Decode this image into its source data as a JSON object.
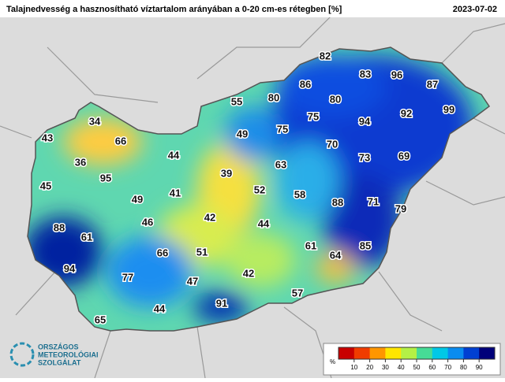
{
  "header": {
    "title": "Talajnedvesség a hasznosítható víztartalom arányában a 0-20 cm-es rétegben [%]",
    "date": "2023-07-02"
  },
  "map": {
    "values": [
      82,
      83,
      96,
      87,
      86,
      80,
      80,
      55,
      92,
      99,
      94,
      75,
      34,
      75,
      43,
      66,
      49,
      70,
      44,
      36,
      73,
      69,
      63,
      39,
      95,
      45,
      41,
      52,
      58,
      49,
      88,
      71,
      79,
      42,
      46,
      44,
      88,
      61,
      61,
      85,
      64,
      66,
      51,
      94,
      42,
      77,
      47,
      57,
      91,
      44,
      65
    ]
  },
  "legend": {
    "unit": "%",
    "range": [
      0,
      100
    ],
    "ticks": [
      10,
      20,
      30,
      40,
      50,
      60,
      70,
      80,
      90
    ],
    "colors": [
      "#c80000",
      "#f03c00",
      "#ff9600",
      "#ffe600",
      "#b4f046",
      "#46dc96",
      "#00c8e6",
      "#0a8cf0",
      "#0040d2",
      "#00007a"
    ]
  },
  "logo": {
    "line1": "ORSZÁGOS",
    "line2": "METEOROLÓGIAI",
    "line3": "SZOLGÁLAT"
  }
}
